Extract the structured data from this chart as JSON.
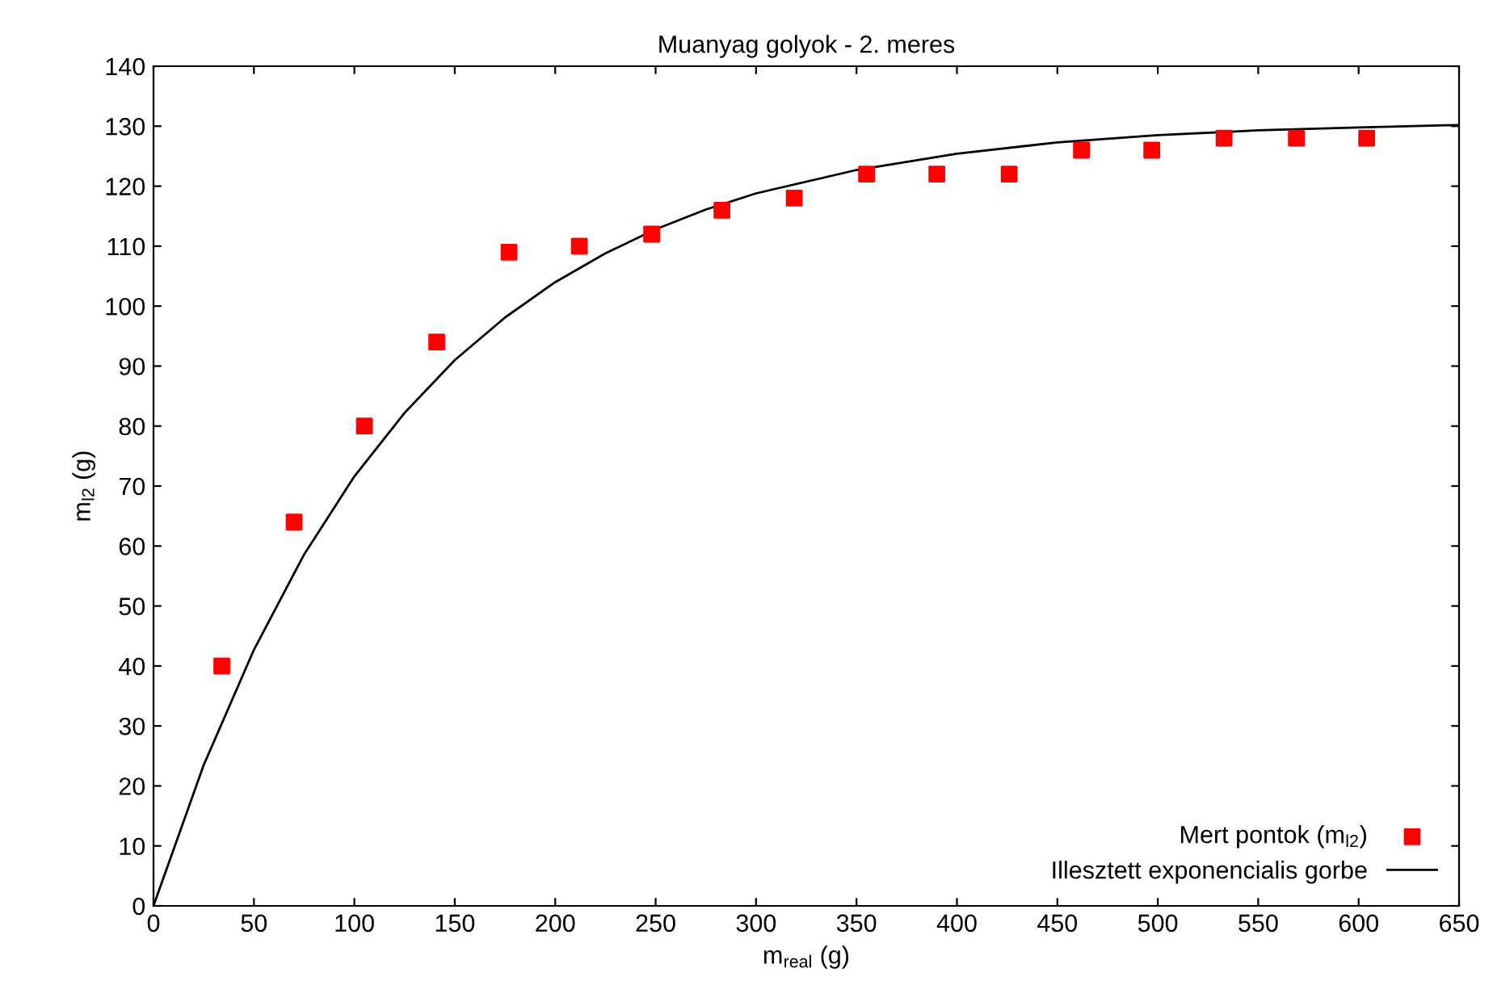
{
  "chart_data": {
    "type": "scatter",
    "title": "Muanyag golyok - 2. meres",
    "xlabel": "m$_{real}$ (g)",
    "ylabel": "m$_{l2}$ (g)",
    "xlim": [
      0,
      650
    ],
    "xticks": [
      0,
      50,
      100,
      150,
      200,
      250,
      300,
      350,
      400,
      450,
      500,
      550,
      600,
      650
    ],
    "ylim": [
      0,
      140
    ],
    "yticks": [
      0,
      10,
      20,
      30,
      40,
      50,
      60,
      70,
      80,
      90,
      100,
      110,
      120,
      130,
      140
    ],
    "grid": false,
    "legend": "bottom right",
    "series": [
      {
        "name": "Mert pontok (m$_{l2}$)",
        "color": "#ff0000",
        "marker": "square",
        "x": [
          34,
          70,
          105,
          141,
          177,
          212,
          248,
          283,
          319,
          355,
          390,
          426,
          462,
          497,
          533,
          569,
          604
        ],
        "values": [
          40,
          64,
          80,
          94,
          109,
          110,
          112,
          116,
          118,
          122,
          122,
          122,
          126,
          126,
          128,
          128,
          128
        ]
      },
      {
        "name": "Illesztett exponencialis gorbe",
        "type": "line",
        "color": "#000000",
        "marker": "none",
        "line_style": "solid",
        "x": [
          0,
          25,
          50,
          75,
          100,
          125,
          150,
          175,
          200,
          225,
          250,
          275,
          300,
          350,
          400,
          450,
          500,
          550,
          600,
          650
        ],
        "values": [
          0,
          23.5,
          42.7,
          58.6,
          71.6,
          82.2,
          91.0,
          98.1,
          104.0,
          108.8,
          112.8,
          116.1,
          118.8,
          122.7,
          125.4,
          127.3,
          128.5,
          129.3,
          129.8,
          130.2
        ]
      }
    ]
  }
}
